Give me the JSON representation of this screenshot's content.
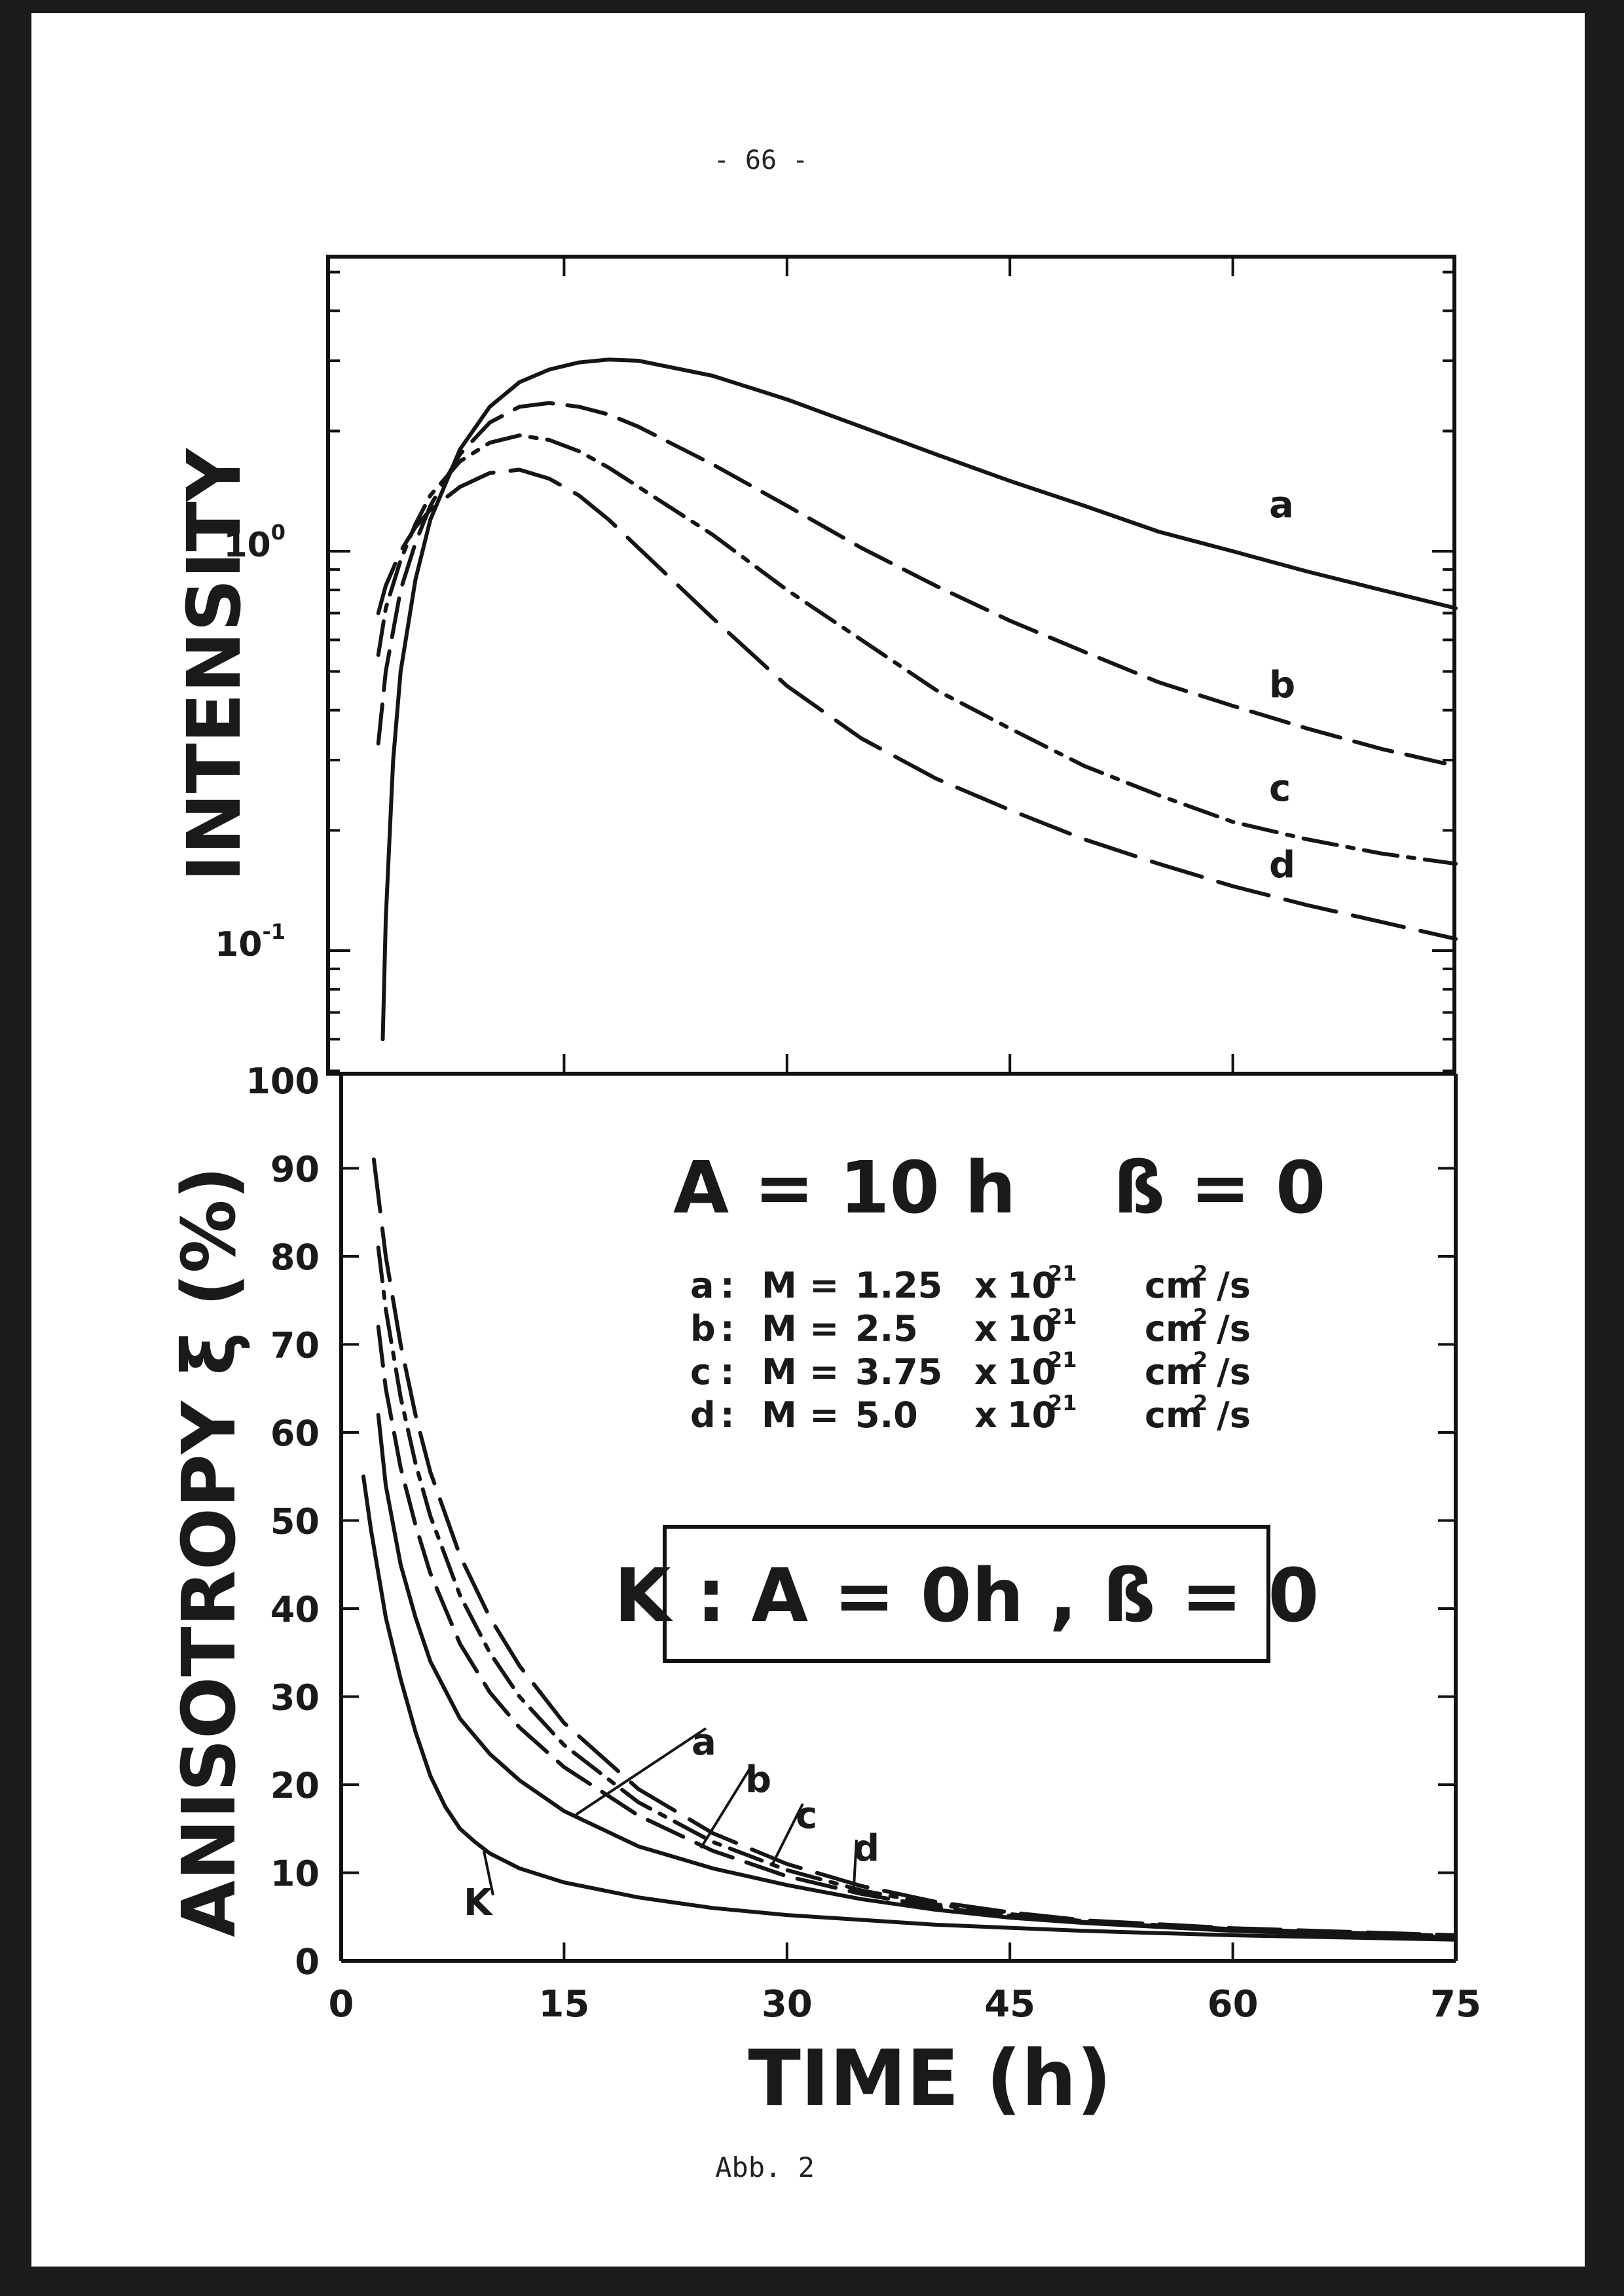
{
  "page_number": "- 66 -",
  "caption": "Abb. 2",
  "chart_data": [
    {
      "type": "line",
      "panel": "upper",
      "ylabel": "INTENSITY",
      "yscale": "log",
      "ylim": [
        0.05,
        4.0
      ],
      "xlim": [
        0,
        75
      ],
      "yticks": [
        {
          "value": 1.0,
          "label_base": "10",
          "label_exp": "0"
        },
        {
          "value": 0.1,
          "label_base": "10",
          "label_exp": "-1"
        }
      ],
      "series": [
        {
          "name": "a",
          "dash": "solid",
          "x": [
            2.8,
            3,
            3.5,
            4,
            5,
            6,
            8,
            10,
            12,
            14,
            16,
            18,
            20,
            25,
            30,
            35,
            40,
            45,
            50,
            55,
            60,
            65,
            70,
            75
          ],
          "y": [
            0.06,
            0.12,
            0.3,
            0.5,
            0.85,
            1.2,
            1.8,
            2.3,
            2.65,
            2.85,
            2.97,
            3.02,
            3.0,
            2.75,
            2.4,
            2.05,
            1.75,
            1.5,
            1.3,
            1.12,
            1.0,
            0.89,
            0.8,
            0.72
          ]
        },
        {
          "name": "b",
          "dash": "long",
          "x": [
            2.5,
            3,
            4,
            5,
            6,
            8,
            10,
            12,
            14,
            16,
            18,
            20,
            25,
            30,
            35,
            40,
            45,
            50,
            55,
            60,
            65,
            70,
            75
          ],
          "y": [
            0.33,
            0.5,
            0.8,
            1.05,
            1.3,
            1.75,
            2.1,
            2.3,
            2.35,
            2.3,
            2.2,
            2.05,
            1.65,
            1.3,
            1.02,
            0.82,
            0.67,
            0.56,
            0.47,
            0.41,
            0.36,
            0.32,
            0.29
          ]
        },
        {
          "name": "c",
          "dash": "dashdot",
          "x": [
            2.5,
            3,
            4,
            5,
            6,
            8,
            10,
            12,
            14,
            16,
            18,
            20,
            25,
            30,
            35,
            40,
            45,
            50,
            55,
            60,
            65,
            70,
            75
          ],
          "y": [
            0.55,
            0.72,
            0.95,
            1.17,
            1.38,
            1.68,
            1.87,
            1.95,
            1.9,
            1.78,
            1.62,
            1.45,
            1.1,
            0.8,
            0.6,
            0.45,
            0.36,
            0.29,
            0.245,
            0.21,
            0.19,
            0.175,
            0.165
          ]
        },
        {
          "name": "d",
          "dash": "long2",
          "x": [
            2.5,
            3,
            4,
            5,
            6,
            8,
            10,
            12,
            14,
            16,
            18,
            20,
            25,
            30,
            35,
            40,
            45,
            50,
            55,
            60,
            65,
            70,
            75
          ],
          "y": [
            0.7,
            0.82,
            1.0,
            1.15,
            1.27,
            1.45,
            1.57,
            1.6,
            1.52,
            1.38,
            1.2,
            1.02,
            0.68,
            0.46,
            0.34,
            0.27,
            0.225,
            0.19,
            0.165,
            0.145,
            0.13,
            0.118,
            0.107
          ]
        }
      ],
      "annotations": [
        "a",
        "b",
        "c",
        "d"
      ]
    },
    {
      "type": "line",
      "panel": "lower",
      "ylabel": "ANISOTROPY ξ (%)",
      "xlabel": "TIME (h)",
      "xlim": [
        0,
        75
      ],
      "ylim": [
        0,
        100
      ],
      "xticks": [
        "0",
        "15",
        "30",
        "45",
        "60",
        "75"
      ],
      "yticks": [
        "0",
        "10",
        "20",
        "30",
        "40",
        "50",
        "60",
        "70",
        "80",
        "90",
        "100"
      ],
      "series": [
        {
          "name": "K",
          "dash": "solid",
          "x": [
            1.5,
            2,
            3,
            4,
            5,
            6,
            7,
            8,
            9,
            10,
            12,
            15,
            20,
            25,
            30,
            40,
            50,
            60,
            75
          ],
          "y": [
            55,
            49,
            39,
            32,
            26,
            21,
            17.5,
            15,
            13.5,
            12.2,
            10.5,
            8.9,
            7.2,
            6.0,
            5.2,
            4.1,
            3.4,
            2.9,
            2.4
          ]
        },
        {
          "name": "a",
          "dash": "solid",
          "x": [
            2.5,
            3,
            4,
            5,
            6,
            8,
            10,
            12,
            15,
            20,
            25,
            30,
            35,
            40,
            45,
            50,
            60,
            75
          ],
          "y": [
            62,
            54,
            45,
            39,
            34,
            27.5,
            23.5,
            20.5,
            17,
            13,
            10.5,
            8.6,
            7.0,
            5.8,
            4.9,
            4.3,
            3.4,
            2.6
          ]
        },
        {
          "name": "b",
          "dash": "long",
          "x": [
            2.5,
            3,
            4,
            5,
            6,
            8,
            10,
            12,
            15,
            20,
            25,
            30,
            35,
            40,
            45,
            50,
            60,
            75
          ],
          "y": [
            72,
            65,
            56,
            49.5,
            44,
            36,
            30.5,
            26.5,
            22,
            16.5,
            12.5,
            9.6,
            7.6,
            6.1,
            5.1,
            4.4,
            3.5,
            2.7
          ]
        },
        {
          "name": "c",
          "dash": "dashdot",
          "x": [
            2.5,
            3,
            4,
            5,
            6,
            8,
            10,
            12,
            15,
            20,
            25,
            30,
            35,
            40,
            45,
            50,
            60,
            75
          ],
          "y": [
            81,
            74,
            64,
            56.5,
            50.5,
            41.5,
            35,
            30,
            24.5,
            18,
            13.5,
            10.3,
            8.0,
            6.4,
            5.3,
            4.5,
            3.6,
            2.8
          ]
        },
        {
          "name": "d",
          "dash": "long2",
          "x": [
            2.2,
            3,
            4,
            5,
            6,
            8,
            10,
            12,
            15,
            20,
            25,
            30,
            35,
            40,
            45,
            50,
            60,
            75
          ],
          "y": [
            91,
            80,
            70,
            62,
            55.5,
            46,
            39,
            33.5,
            27,
            19.5,
            14.5,
            11,
            8.5,
            6.7,
            5.5,
            4.6,
            3.7,
            2.9
          ]
        }
      ],
      "annotations": [
        "a",
        "b",
        "c",
        "d",
        "K"
      ],
      "legend": {
        "title": "A = 10 h",
        "beta": "ß = 0",
        "rows": [
          {
            "key": "a",
            "sep": ":",
            "var": "M",
            "eq": "=",
            "value": "1.25",
            "times": "x",
            "base": "10",
            "exp": "21",
            "unit": "cm",
            "unit_exp": "2",
            "unit_rest": "/s"
          },
          {
            "key": "b",
            "sep": ":",
            "var": "M",
            "eq": "=",
            "value": "2.5",
            "times": "x",
            "base": "10",
            "exp": "21",
            "unit": "cm",
            "unit_exp": "2",
            "unit_rest": "/s"
          },
          {
            "key": "c",
            "sep": ":",
            "var": "M",
            "eq": "=",
            "value": "3.75",
            "times": "x",
            "base": "10",
            "exp": "21",
            "unit": "cm",
            "unit_exp": "2",
            "unit_rest": "/s"
          },
          {
            "key": "d",
            "sep": ":",
            "var": "M",
            "eq": "=",
            "value": "5.0",
            "times": "x",
            "base": "10",
            "exp": "21",
            "unit": "cm",
            "unit_exp": "2",
            "unit_rest": "/s"
          }
        ],
        "box_text": "K : A = 0h , ß = 0"
      }
    }
  ]
}
